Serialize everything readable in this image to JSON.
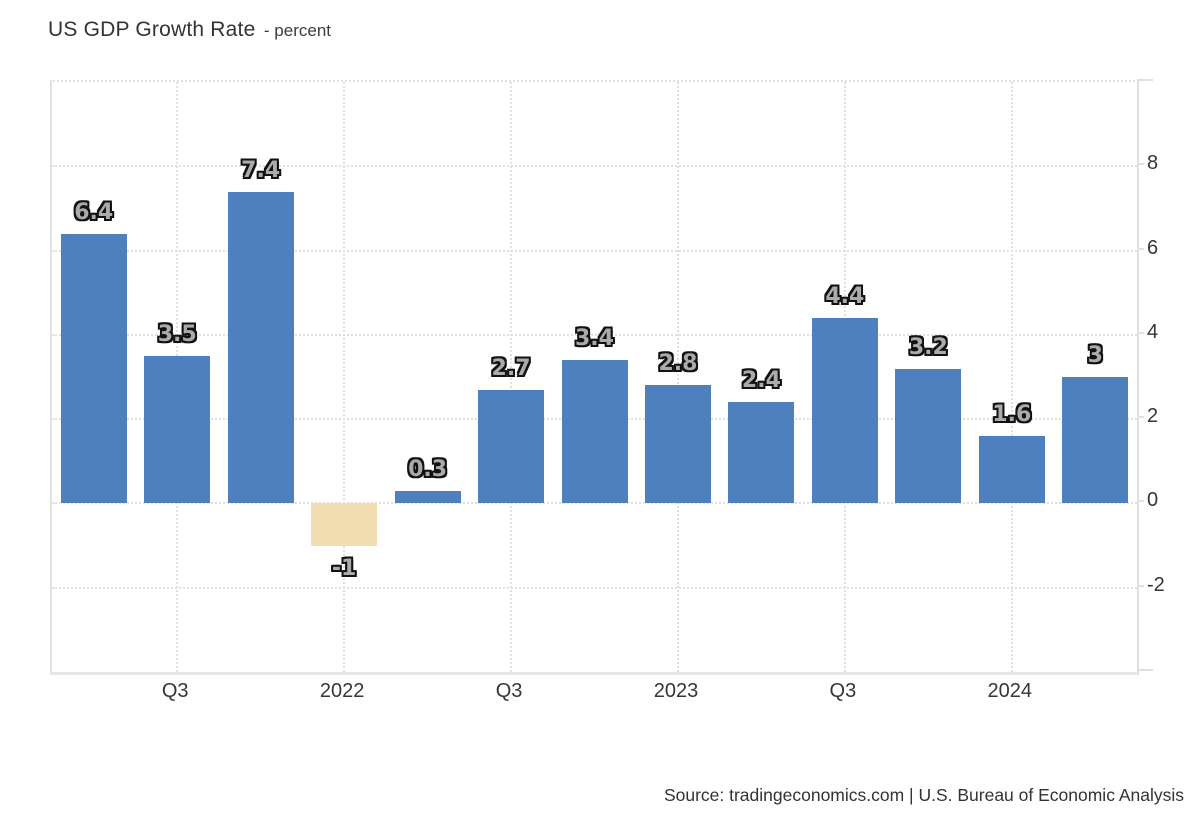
{
  "header": {
    "title": "US GDP Growth Rate",
    "subtitle": "- percent"
  },
  "source": {
    "text": "Source: tradingeconomics.com | U.S. Bureau of Economic Analysis"
  },
  "chart_data": {
    "type": "bar",
    "title": "US GDP Growth Rate",
    "ylabel": "percent",
    "values": [
      6.4,
      3.5,
      7.4,
      -1,
      0.3,
      2.7,
      3.4,
      2.8,
      2.4,
      4.4,
      3.2,
      1.6,
      3
    ],
    "bar_labels": [
      "6.4",
      "3.5",
      "7.4",
      "-1",
      "0.3",
      "2.7",
      "3.4",
      "2.8",
      "2.4",
      "4.4",
      "3.2",
      "1.6",
      "3"
    ],
    "x_tick_labels": [
      "Q3",
      "2022",
      "Q3",
      "2023",
      "Q3",
      "2024"
    ],
    "x_tick_slots": [
      1,
      3,
      5,
      7,
      9,
      11
    ],
    "y_ticks": [
      8,
      6,
      4,
      2,
      0,
      -2
    ],
    "ylim": [
      -4,
      10
    ],
    "grid": "dotted",
    "legend": "none",
    "colors": {
      "positive_bar": "#4d80bc",
      "negative_bar": "#f3deb2",
      "gridline": "#e0e0e0",
      "axis": "#e2e2e2",
      "bar_label_fill": "#ababab",
      "bar_label_outline": "#121212",
      "tick_text": "#363636",
      "title_text": "#333333"
    }
  }
}
